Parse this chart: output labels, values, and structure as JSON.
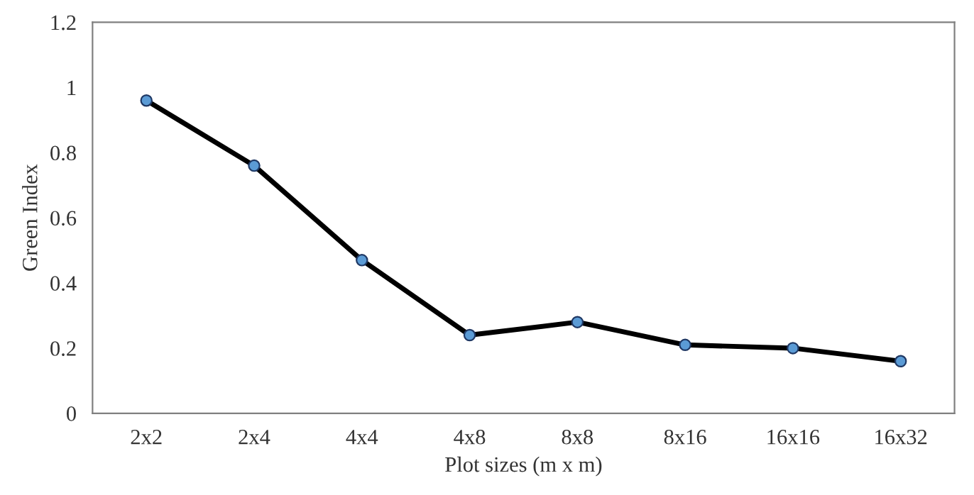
{
  "chart_data": {
    "type": "line",
    "xlabel": "Plot sizes (m x m)",
    "ylabel": "Green Index",
    "categories": [
      "2x2",
      "2x4",
      "4x4",
      "4x8",
      "8x8",
      "8x16",
      "16x16",
      "16x32"
    ],
    "series": [
      {
        "color": "#000000",
        "values": [
          0.96,
          0.76,
          0.47,
          0.24,
          0.28,
          0.21,
          0.2,
          0.16
        ]
      }
    ],
    "ylim": [
      0,
      1.2
    ],
    "yticks": [
      0,
      0.2,
      0.4,
      0.6,
      0.8,
      1,
      1.2
    ],
    "grid": false,
    "legend": false,
    "marker": "circle",
    "line_style": "solid"
  }
}
